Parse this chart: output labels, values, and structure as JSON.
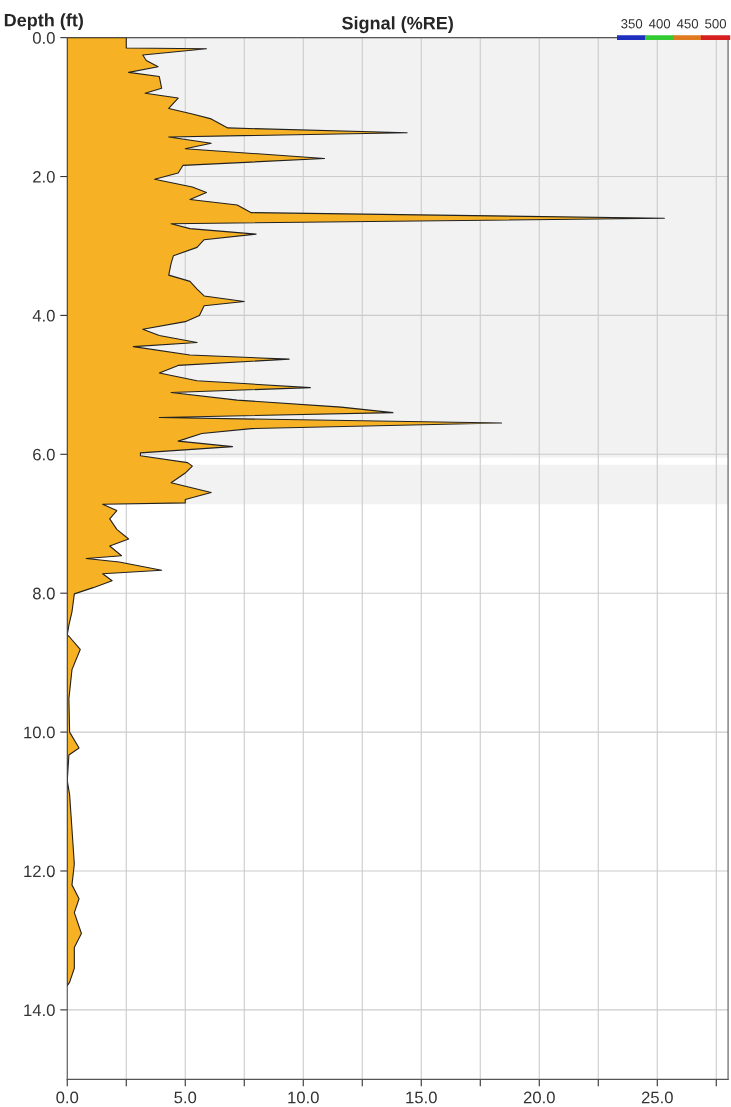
{
  "chart_data": {
    "type": "area",
    "orientation": "horizontal",
    "title": "Signal (%RE)",
    "ylabel": "Depth (ft)",
    "annotations": [
      "350",
      "400",
      "450",
      "500"
    ],
    "x": [
      0,
      0.15,
      0.16,
      0.25,
      0.33,
      0.42,
      0.5,
      0.56,
      0.73,
      0.8,
      0.87,
      1.02,
      1.1,
      1.17,
      1.3,
      1.37,
      1.43,
      1.52,
      1.6,
      1.74,
      1.84,
      1.95,
      2.04,
      2.15,
      2.23,
      2.33,
      2.41,
      2.52,
      2.6,
      2.68,
      2.75,
      2.83,
      2.91,
      3.02,
      3.14,
      3.25,
      3.42,
      3.51,
      3.62,
      3.72,
      3.8,
      3.86,
      4.0,
      4.09,
      4.2,
      4.29,
      4.39,
      4.45,
      4.57,
      4.63,
      4.72,
      4.83,
      4.94,
      5.04,
      5.11,
      5.22,
      5.32,
      5.4,
      5.47,
      5.55,
      5.63,
      5.7,
      5.81,
      5.89,
      5.98,
      6.02,
      6.12,
      6.17,
      6.27,
      6.41,
      6.55,
      6.65,
      6.7,
      6.72,
      6.81,
      6.93,
      7.08,
      7.22,
      7.32,
      7.46,
      7.5,
      7.55,
      7.67,
      7.72,
      7.82,
      7.92,
      8.01,
      8.27,
      8.46,
      8.6,
      8.62,
      8.81,
      9.1,
      9.52,
      10.0,
      10.23,
      10.33,
      10.7,
      10.9,
      11.4,
      11.9,
      12.2,
      12.4,
      12.6,
      12.9,
      13.1,
      13.4,
      13.6,
      13.65
    ],
    "series": [
      {
        "color": "#f6b224",
        "values": [
          2.5,
          2.5,
          5.9,
          3.2,
          3.35,
          3.85,
          2.6,
          3.9,
          4.0,
          3.3,
          4.7,
          4.3,
          5.3,
          6.1,
          6.8,
          14.4,
          4.3,
          6.1,
          5.0,
          10.9,
          4.9,
          4.7,
          3.7,
          5.3,
          5.9,
          5.2,
          7.2,
          7.8,
          25.3,
          4.4,
          5.2,
          8.0,
          5.8,
          5.5,
          4.5,
          4.4,
          4.3,
          5.2,
          5.5,
          5.8,
          7.5,
          5.8,
          5.6,
          5.0,
          3.2,
          3.9,
          5.5,
          2.8,
          5.2,
          9.4,
          4.7,
          3.9,
          5.5,
          10.3,
          4.4,
          7.2,
          11.6,
          13.8,
          3.9,
          18.4,
          7.8,
          5.7,
          4.7,
          7.0,
          3.1,
          3.1,
          5.1,
          5.3,
          5.0,
          4.4,
          6.1,
          5.0,
          5.0,
          1.5,
          2.1,
          1.8,
          2.1,
          2.6,
          1.8,
          2.3,
          0.8,
          2.2,
          4.0,
          1.5,
          1.9,
          1.1,
          0.3,
          0.2,
          0.07,
          0,
          0.07,
          0.55,
          0.2,
          0.07,
          0.1,
          0.5,
          0.07,
          0,
          0.1,
          0.2,
          0.3,
          0.2,
          0.5,
          0.3,
          0.6,
          0.3,
          0.3,
          0.1,
          0
        ]
      }
    ],
    "xlim": [
      0,
      28
    ],
    "ylim": [
      15,
      0
    ],
    "xticks": [
      {
        "value": 0,
        "label": "0.0"
      },
      {
        "value": 2.5,
        "label": null
      },
      {
        "value": 5,
        "label": "5.0"
      },
      {
        "value": 7.5,
        "label": null
      },
      {
        "value": 10,
        "label": "10.0"
      },
      {
        "value": 12.5,
        "label": null
      },
      {
        "value": 15,
        "label": "15.0"
      },
      {
        "value": 17.5,
        "label": null
      },
      {
        "value": 20,
        "label": "20.0"
      },
      {
        "value": 22.5,
        "label": null
      },
      {
        "value": 25,
        "label": "25.0"
      },
      {
        "value": 27.5,
        "label": null
      }
    ],
    "yticks": [
      {
        "value": 0,
        "label": "0.0"
      },
      {
        "value": 2,
        "label": "2.0"
      },
      {
        "value": 4,
        "label": "4.0"
      },
      {
        "value": 6,
        "label": "6.0"
      },
      {
        "value": 8,
        "label": "8.0"
      },
      {
        "value": 10,
        "label": "10.0"
      },
      {
        "value": 12,
        "label": "12.0"
      },
      {
        "value": 14,
        "label": "14.0"
      }
    ],
    "bands": [
      {
        "axis": "y",
        "from": 0,
        "to": 6.05,
        "color": "#f2f2f2"
      },
      {
        "axis": "y",
        "from": 6.15,
        "to": 6.72,
        "color": "#f2f2f2"
      }
    ],
    "grid": true
  }
}
